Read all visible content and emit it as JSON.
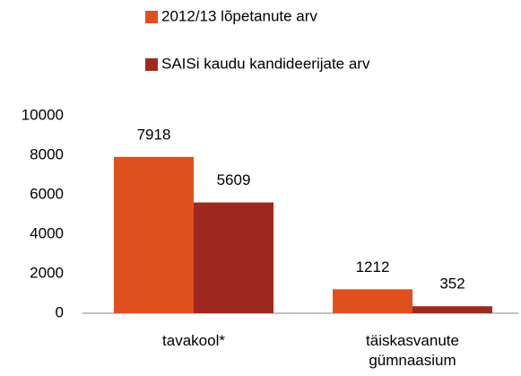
{
  "chart_data": {
    "type": "bar",
    "categories": [
      "tavakool*",
      "täiskasvanute gümnaasium"
    ],
    "series": [
      {
        "name": "2012/13 lõpetanute arv",
        "color": "#e0501e",
        "values": [
          7918,
          1212
        ]
      },
      {
        "name": "SAISi kaudu kandideerijate arv",
        "color": "#9e2a1f",
        "values": [
          5609,
          352
        ]
      }
    ],
    "ylim": [
      0,
      10000
    ],
    "yticks": [
      0,
      2000,
      4000,
      6000,
      8000,
      10000
    ],
    "grid": false
  }
}
